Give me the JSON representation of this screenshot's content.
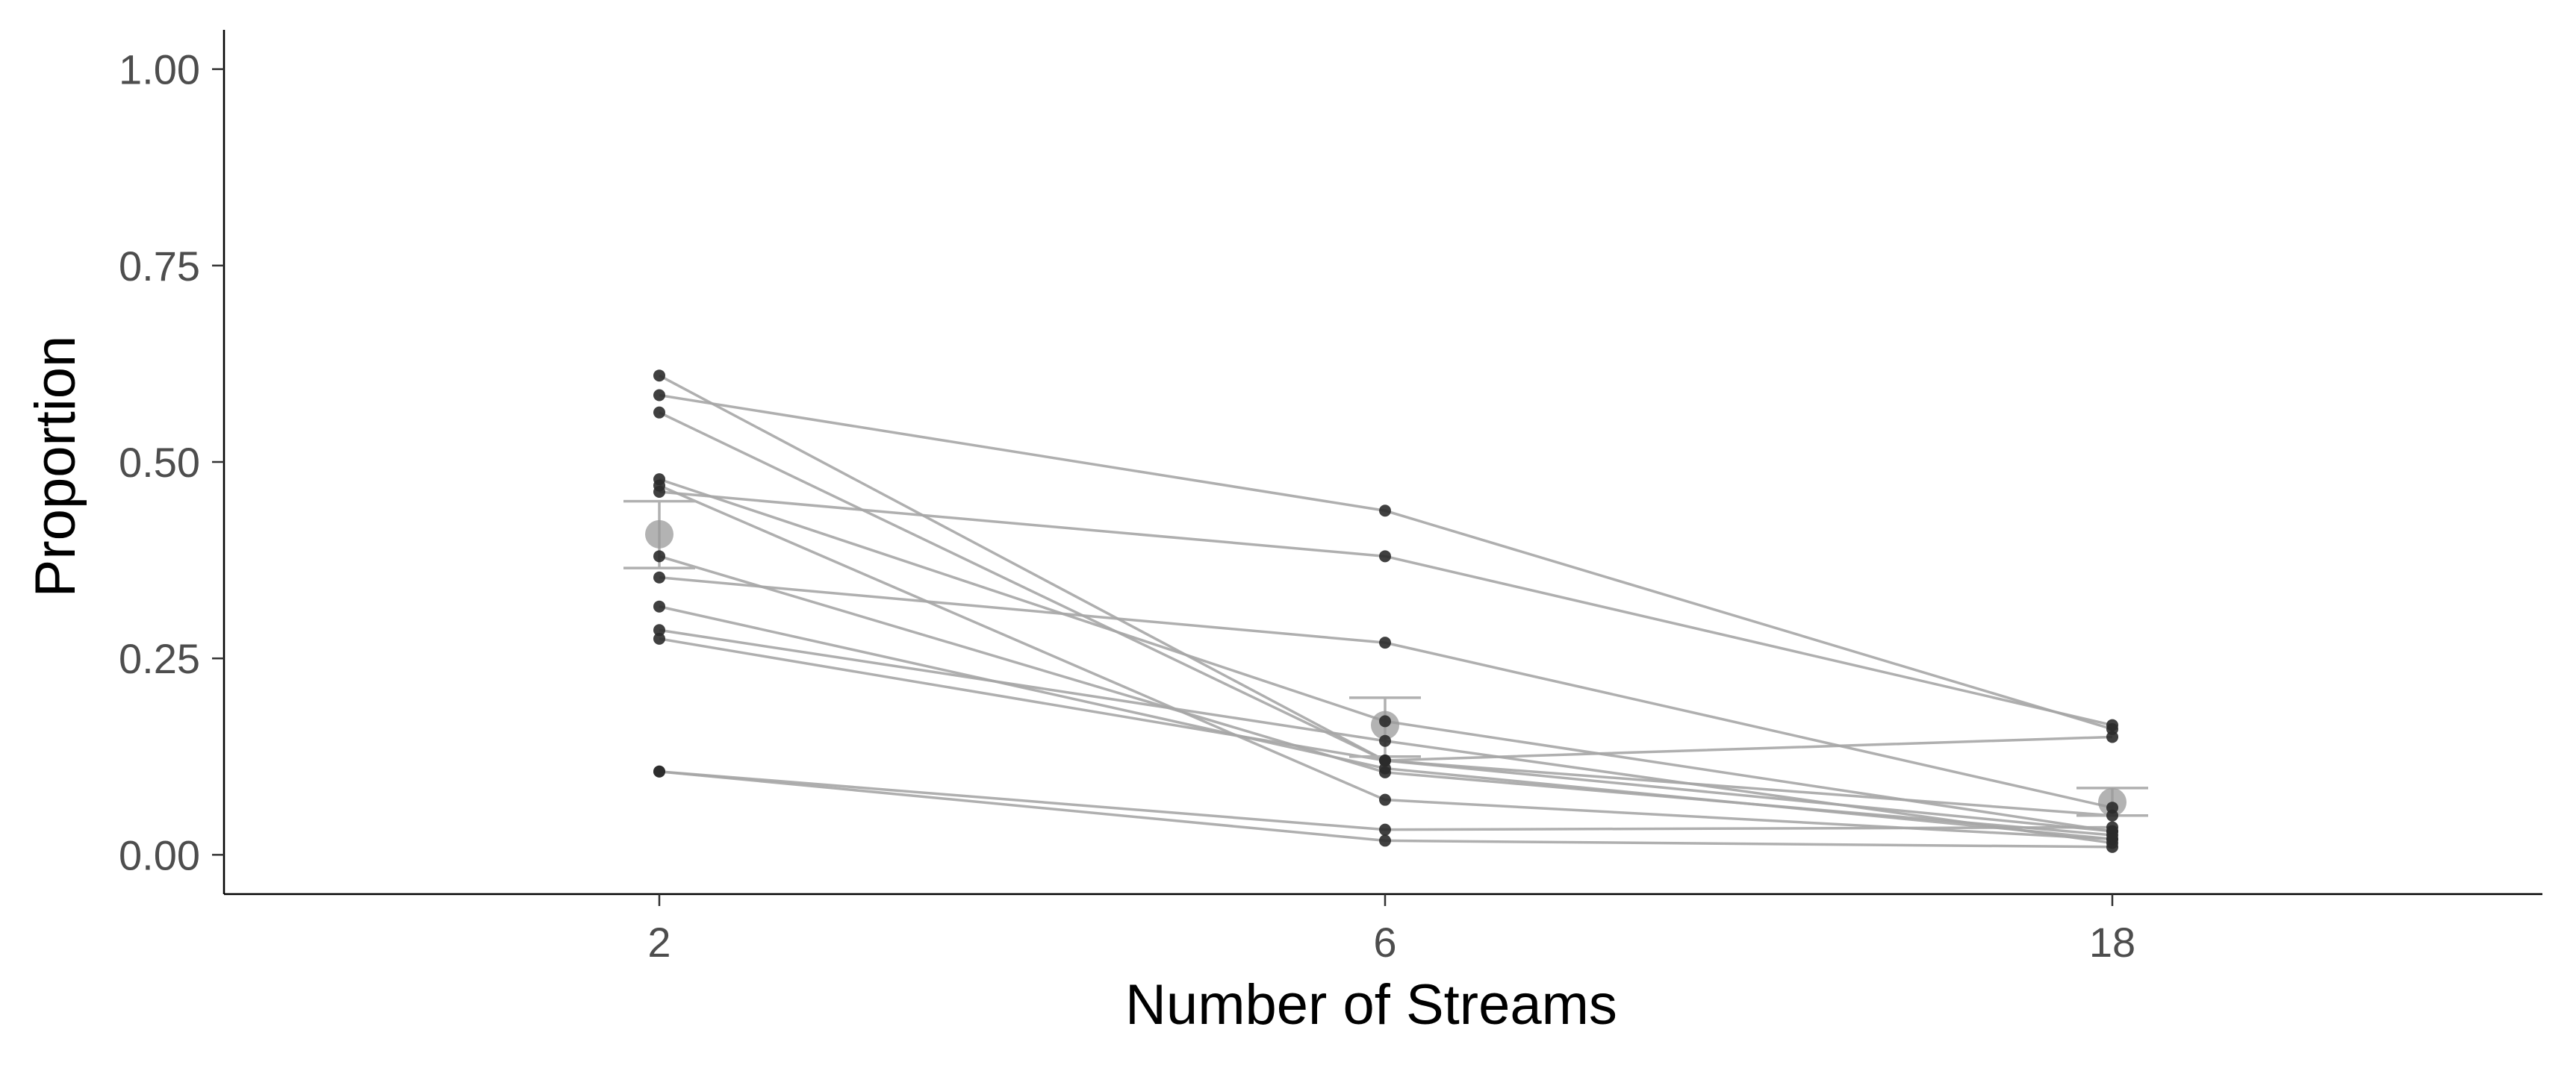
{
  "chart_data": {
    "type": "line",
    "xlabel": "Number of Streams",
    "ylabel": "Proportion",
    "categories": [
      "2",
      "6",
      "18"
    ],
    "ylim": [
      -0.05,
      1.05
    ],
    "y_ticks": [
      0.0,
      0.25,
      0.5,
      0.75,
      1.0
    ],
    "y_tick_labels": [
      "0.00",
      "0.25",
      "0.50",
      "0.75",
      "1.00"
    ],
    "grid": false,
    "legend": "none",
    "participants": [
      {
        "values": [
          0.61,
          0.12,
          0.05
        ]
      },
      {
        "values": [
          0.585,
          0.438,
          0.16
        ]
      },
      {
        "values": [
          0.563,
          0.12,
          0.03
        ]
      },
      {
        "values": [
          0.478,
          0.17,
          0.03
        ]
      },
      {
        "values": [
          0.47,
          0.07,
          0.02
        ]
      },
      {
        "values": [
          0.462,
          0.38,
          0.165
        ]
      },
      {
        "values": [
          0.38,
          0.105,
          0.025
        ]
      },
      {
        "values": [
          0.353,
          0.27,
          0.06
        ]
      },
      {
        "values": [
          0.316,
          0.11,
          0.02
        ]
      },
      {
        "values": [
          0.286,
          0.145,
          0.015
        ]
      },
      {
        "values": [
          0.275,
          0.12,
          0.15
        ]
      },
      {
        "values": [
          0.106,
          0.032,
          0.035
        ]
      },
      {
        "values": [
          0.106,
          0.018,
          0.01
        ]
      }
    ],
    "means": {
      "values": [
        0.408,
        0.165,
        0.067
      ],
      "error_bars": [
        [
          0.365,
          0.45
        ],
        [
          0.125,
          0.2
        ],
        [
          0.05,
          0.085
        ]
      ]
    },
    "colors": {
      "line": "#a6a6a6",
      "point": "#2b2b2b",
      "mean_point": "#9a9a9a",
      "error_bar": "#b0b0b0",
      "axis": "#000000"
    }
  }
}
